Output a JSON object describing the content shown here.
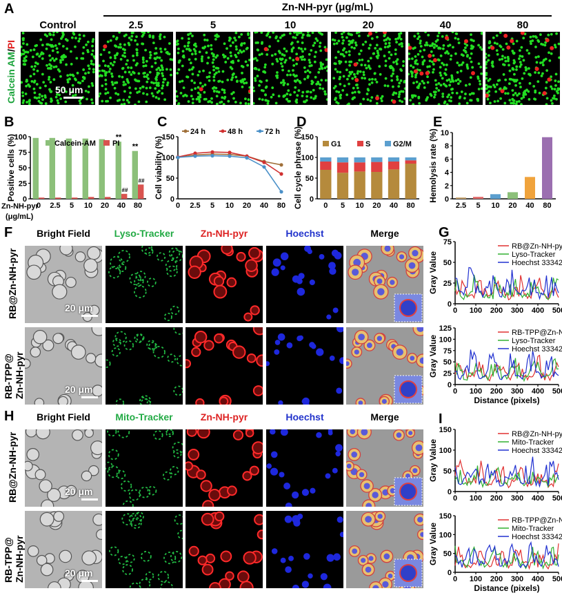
{
  "panels": {
    "A": "A",
    "B": "B",
    "C": "C",
    "D": "D",
    "E": "E",
    "F": "F",
    "G": "G",
    "H": "H",
    "I": "I"
  },
  "panelA": {
    "group_title": "Zn-NH-pyr (μg/mL)",
    "row_label_green": "Calcein AM",
    "row_label_sep": "/",
    "row_label_red": "PI",
    "columns": [
      "Control",
      "2.5",
      "5",
      "10",
      "20",
      "40",
      "80"
    ],
    "red_counts": [
      0,
      1,
      2,
      3,
      6,
      9,
      12
    ],
    "scale_bar": "50 μm",
    "colors": {
      "live": "#22dd22",
      "dead": "#ee2222"
    }
  },
  "panelF": {
    "columns": [
      "Bright Field",
      "Lyso-Tracker",
      "Zn-NH-pyr",
      "Hoechst",
      "Merge"
    ],
    "rows": [
      "RB@Zn-NH-pyr",
      "RB-TPP@",
      "Zn-NH-pyr"
    ],
    "scale_bar": "20 μm"
  },
  "panelH": {
    "columns": [
      "Bright Field",
      "Mito-Tracker",
      "Zn-NH-pyr",
      "Hoechst",
      "Merge"
    ],
    "rows": [
      "RB@Zn-NH-pyr",
      "RB-TPP@",
      "Zn-NH-pyr"
    ],
    "scale_bar": "20 μm"
  },
  "column_colors": [
    "#222222",
    "#22aa44",
    "#dd2222",
    "#2233cc",
    "#444444"
  ],
  "chart_data": [
    {
      "id": "B",
      "type": "bar",
      "categories": [
        "0",
        "2.5",
        "5",
        "10",
        "20",
        "40",
        "80"
      ],
      "series": [
        {
          "name": "Calcein-AM",
          "color": "#8cc07a",
          "values": [
            98,
            98,
            97,
            97,
            96,
            92,
            77
          ]
        },
        {
          "name": "PI",
          "color": "#d9534f",
          "values": [
            2,
            2,
            2,
            3,
            3,
            8,
            23
          ]
        }
      ],
      "annotations_green": [
        "",
        "",
        "",
        "",
        "",
        "**",
        "**"
      ],
      "annotations_red": [
        "",
        "",
        "",
        "",
        "",
        "##",
        "##"
      ],
      "ylabel": "Positive cells (%)",
      "xlabel_line1": "Zn-NH-pyr",
      "xlabel_line2": "(μg/mL)",
      "ylim": [
        0,
        100
      ],
      "yticks": [
        "0",
        "25",
        "50",
        "75",
        "100"
      ]
    },
    {
      "id": "C",
      "type": "line",
      "x": [
        "0",
        "2.5",
        "5",
        "10",
        "20",
        "40",
        "80"
      ],
      "series": [
        {
          "name": "24 h",
          "color": "#a0703a",
          "values": [
            100,
            106,
            108,
            107,
            103,
            90,
            82
          ]
        },
        {
          "name": "48 h",
          "color": "#d03030",
          "values": [
            101,
            110,
            113,
            112,
            103,
            88,
            60
          ]
        },
        {
          "name": "72 h",
          "color": "#4a90c8",
          "values": [
            100,
            103,
            104,
            103,
            99,
            77,
            17
          ]
        }
      ],
      "ylabel": "Cell viability (%)",
      "ylim": [
        0,
        150
      ],
      "yticks": [
        "0",
        "50",
        "100",
        "150"
      ]
    },
    {
      "id": "D",
      "type": "bar",
      "categories": [
        "0",
        "5",
        "10",
        "20",
        "40",
        "80"
      ],
      "series": [
        {
          "name": "G1",
          "color": "#b58a3c",
          "values": [
            70,
            63,
            66,
            65,
            71,
            85
          ]
        },
        {
          "name": "S",
          "color": "#e04040",
          "values": [
            20,
            25,
            22,
            24,
            19,
            8
          ]
        },
        {
          "name": "G2/M",
          "color": "#5b9fcf",
          "values": [
            10,
            12,
            12,
            11,
            10,
            7
          ]
        }
      ],
      "ylabel": "Cell cycle phrase (%)",
      "ylim": [
        0,
        150
      ],
      "yticks": [
        "0",
        "50",
        "100",
        "150"
      ]
    },
    {
      "id": "E",
      "type": "bar",
      "categories": [
        "2.5",
        "5",
        "10",
        "20",
        "40",
        "80"
      ],
      "values": [
        0.2,
        0.3,
        0.7,
        1.0,
        3.3,
        9.3
      ],
      "colors": [
        "#c3a06a",
        "#e06b6b",
        "#5b9fcf",
        "#8cc07a",
        "#f0a33c",
        "#9b6fb0"
      ],
      "ylabel": "Hemolysis rate (%)",
      "ylim": [
        0,
        10
      ],
      "yticks": [
        "0",
        "2",
        "4",
        "6",
        "8",
        "10"
      ]
    },
    {
      "id": "G1",
      "type": "line",
      "xlim": [
        0,
        500
      ],
      "ylim": [
        0,
        75
      ],
      "yticks": [
        "0",
        "25",
        "50",
        "75"
      ],
      "xticks": [
        "0",
        "100",
        "200",
        "300",
        "400",
        "500"
      ],
      "ylabel": "Gray Value",
      "series": [
        {
          "name": "RB@Zn-NH-pyr",
          "color": "#e03030"
        },
        {
          "name": "Lyso-Tracker",
          "color": "#30b030"
        },
        {
          "name": "Hoechst 33342",
          "color": "#2030d0"
        }
      ]
    },
    {
      "id": "G2",
      "type": "line",
      "xlim": [
        0,
        500
      ],
      "ylim": [
        0,
        125
      ],
      "yticks": [
        "0",
        "25",
        "50",
        "75",
        "100",
        "125"
      ],
      "xticks": [
        "0",
        "100",
        "200",
        "300",
        "400",
        "500"
      ],
      "ylabel": "Gray Value",
      "xlabel": "Distance (pixels)",
      "series": [
        {
          "name": "RB-TPP@Zn-NH-pyr",
          "color": "#e03030"
        },
        {
          "name": "Lyso-Tracker",
          "color": "#30b030"
        },
        {
          "name": "Hoechst 33342",
          "color": "#2030d0"
        }
      ]
    },
    {
      "id": "I1",
      "type": "line",
      "xlim": [
        0,
        500
      ],
      "ylim": [
        0,
        150
      ],
      "yticks": [
        "0",
        "50",
        "100",
        "150"
      ],
      "xticks": [
        "0",
        "100",
        "200",
        "300",
        "400",
        "500"
      ],
      "ylabel": "Gray Value",
      "series": [
        {
          "name": "RB@Zn-NH-pyr",
          "color": "#e03030"
        },
        {
          "name": "Mito-Tracker",
          "color": "#30b030"
        },
        {
          "name": "Hoechst 33342",
          "color": "#2030d0"
        }
      ]
    },
    {
      "id": "I2",
      "type": "line",
      "xlim": [
        0,
        500
      ],
      "ylim": [
        0,
        150
      ],
      "yticks": [
        "0",
        "50",
        "100",
        "150"
      ],
      "xticks": [
        "0",
        "100",
        "200",
        "300",
        "400",
        "500"
      ],
      "ylabel": "Gray Value",
      "xlabel": "Distance (pixels)",
      "series": [
        {
          "name": "RB-TPP@Zn-NH-pyr",
          "color": "#e03030"
        },
        {
          "name": "Mito-Tracker",
          "color": "#30b030"
        },
        {
          "name": "Hoechst 33342",
          "color": "#2030d0"
        }
      ]
    }
  ]
}
